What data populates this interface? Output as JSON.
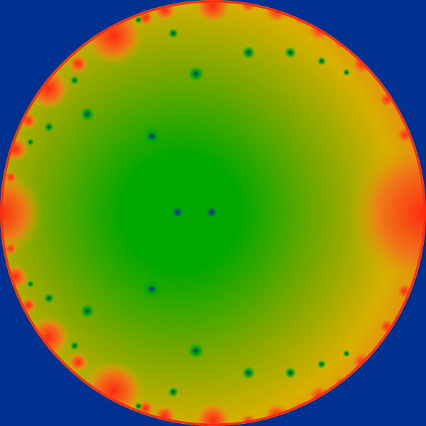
{
  "colors": {
    "background": "#003090",
    "deep": "#0024a8",
    "green": "#00a800",
    "olive": "#7ea800",
    "yellow": "#d8b000",
    "orange": "#ee7a18",
    "red": "#ff2a12"
  }
}
